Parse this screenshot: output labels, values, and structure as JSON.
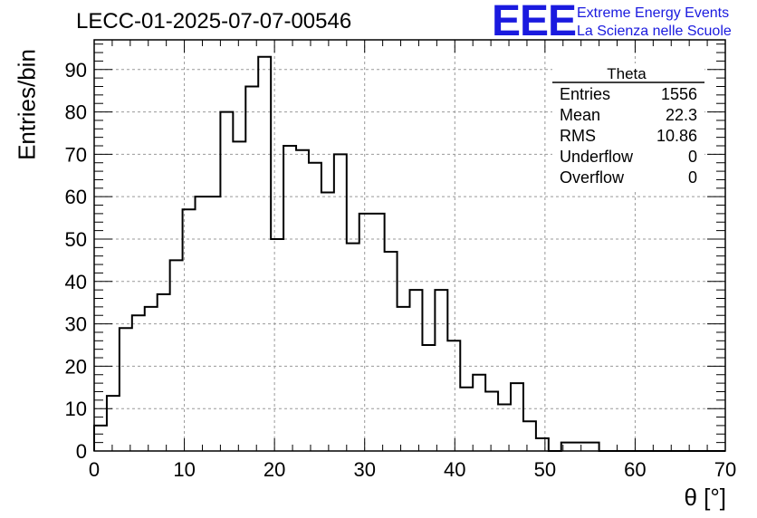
{
  "header": {
    "title": "LECC-01-2025-07-07-00546",
    "logo_text": "EEE",
    "logo_line1": "Extreme Energy Events",
    "logo_line2": "La Scienza nelle Scuole",
    "logo_color": "#1a1adf"
  },
  "stats": {
    "name": "Theta",
    "rows": [
      {
        "label": "Entries",
        "value": "1556"
      },
      {
        "label": "Mean",
        "value": "22.3"
      },
      {
        "label": "RMS",
        "value": "10.86"
      },
      {
        "label": "Underflow",
        "value": "0"
      },
      {
        "label": "Overflow",
        "value": "0"
      }
    ]
  },
  "chart_data": {
    "type": "histogram",
    "xlabel": "θ [°]",
    "ylabel": "Entries/bin",
    "xlim": [
      0,
      70
    ],
    "ylim": [
      0,
      97
    ],
    "bin_width": 1.4,
    "bin_start": 0,
    "values": [
      6,
      13,
      29,
      32,
      34,
      37,
      45,
      57,
      60,
      60,
      80,
      73,
      86,
      93,
      50,
      72,
      71,
      68,
      61,
      70,
      49,
      56,
      56,
      47,
      34,
      38,
      25,
      38,
      26,
      15,
      18,
      14,
      11,
      16,
      7,
      3,
      0,
      2,
      2,
      2,
      0,
      0,
      0,
      0,
      0,
      0,
      0,
      0,
      0,
      0
    ],
    "xticks": [
      0,
      10,
      20,
      30,
      40,
      50,
      60,
      70
    ],
    "yticks": [
      0,
      10,
      20,
      30,
      40,
      50,
      60,
      70,
      80,
      90
    ],
    "grid": true,
    "line_color": "#000000"
  }
}
